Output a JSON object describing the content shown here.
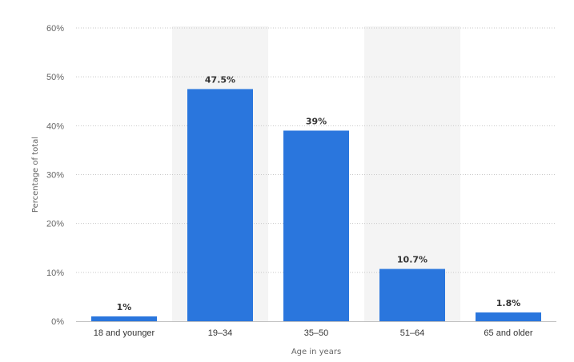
{
  "chart_data": {
    "type": "bar",
    "categories": [
      "18 and younger",
      "19–34",
      "35–50",
      "51–64",
      "65 and older"
    ],
    "values": [
      1,
      47.5,
      39,
      10.7,
      1.8
    ],
    "data_labels": [
      "1%",
      "47.5%",
      "39%",
      "10.7%",
      "1.8%"
    ],
    "y_ticks": [
      "0%",
      "10%",
      "20%",
      "30%",
      "40%",
      "50%",
      "60%"
    ],
    "ylim": [
      0,
      60
    ],
    "xlabel": "Age in years",
    "ylabel": "Percentage of total",
    "grid": true,
    "bar_color": "#2a76dd",
    "band_color": "#f4f4f4"
  }
}
